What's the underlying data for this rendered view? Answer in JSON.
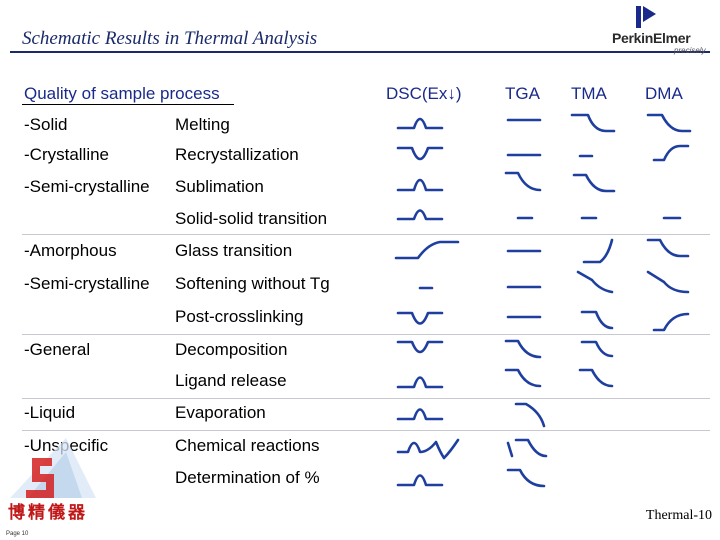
{
  "slide": {
    "title": "Schematic Results in Thermal Analysis",
    "logo_name": "PerkinElmer",
    "logo_tagline": "precisely",
    "footer_ref": "Thermal-10",
    "page_label": "Page 10",
    "company_cn": "博精儀器"
  },
  "table": {
    "header_left": "Quality of sample process",
    "header_dsc": "DSC(Ex↓)",
    "header_tga": "TGA",
    "header_tma": "TMA",
    "header_dma": "DMA",
    "rows": [
      {
        "quality": "-Solid",
        "process": "Melting"
      },
      {
        "quality": "-Crystalline",
        "process": "Recrystallization"
      },
      {
        "quality": "-Semi-crystalline",
        "process": "Sublimation"
      },
      {
        "quality": "",
        "process": "Solid-solid transition"
      },
      {
        "quality": "-Amorphous",
        "process": "Glass transition"
      },
      {
        "quality": "-Semi-crystalline",
        "process": "Softening without Tg"
      },
      {
        "quality": "",
        "process": "Post-crosslinking"
      },
      {
        "quality": "-General",
        "process": "Decomposition"
      },
      {
        "quality": "",
        "process": "Ligand release"
      },
      {
        "quality": "-Liquid",
        "process": "Evaporation"
      },
      {
        "quality": "-Unspecific",
        "process": "Chemical reactions"
      },
      {
        "quality": "",
        "process": "Determination of %"
      }
    ]
  },
  "colors": {
    "title": "#1a2a6b",
    "curve": "#1f3f9f",
    "header": "#1a2a8a",
    "company_cn": "#c01818"
  },
  "icons": [
    "perkinelmer-logo",
    "company-corner-logo"
  ]
}
